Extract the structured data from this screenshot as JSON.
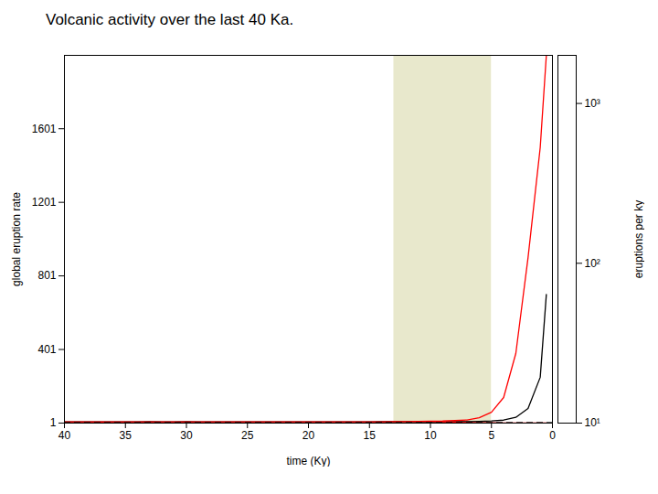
{
  "chart_data": {
    "type": "line",
    "title": "Volcanic activity over the last 40 Ka.",
    "xlabel": "time (Ky)",
    "ylabel": "global eruption rate",
    "y2label": "eruptions per ky",
    "x": [
      40,
      39,
      38,
      37,
      36,
      35,
      34,
      33,
      32,
      31,
      30,
      29,
      28,
      27,
      26,
      25,
      24,
      23,
      22,
      21,
      20,
      19,
      18,
      17,
      16,
      15,
      14,
      13,
      12,
      11,
      10,
      9,
      8,
      7,
      6,
      5,
      4,
      3,
      2,
      1,
      0.5
    ],
    "series": [
      {
        "color": "black",
        "values": [
          7.8,
          7.5,
          7.4,
          7.35,
          7.5,
          7.55,
          7.9,
          8.1,
          7.9,
          7.8,
          8.3,
          8.0,
          7.85,
          7.7,
          7.65,
          7.8,
          7.7,
          7.6,
          7.7,
          7.75,
          7.85,
          7.8,
          7.75,
          7.8,
          7.9,
          8.0,
          8.15,
          8.2,
          8.4,
          8.3,
          8.1,
          7.5,
          8.3,
          9.0,
          10.5,
          12.5,
          17.0,
          32.0,
          80.0,
          250.0,
          700.0
        ]
      },
      {
        "color": "red",
        "values": [
          7.5,
          7.2,
          7.1,
          7.05,
          7.2,
          7.25,
          7.55,
          7.75,
          7.6,
          7.5,
          7.95,
          7.7,
          7.55,
          7.4,
          7.35,
          7.4,
          7.3,
          7.2,
          7.25,
          7.35,
          7.45,
          7.5,
          7.55,
          7.7,
          7.8,
          7.9,
          8.05,
          8.4,
          9.2,
          10.2,
          11.3,
          12.0,
          14.5,
          18.0,
          30.0,
          60.0,
          140.0,
          380.0,
          900.0,
          1500.0,
          2000.0
        ]
      },
      {
        "color": "red",
        "values": [
          1.06,
          1.03,
          1.01,
          1.0,
          1.02,
          1.03,
          1.05,
          1.08,
          1.06,
          1.05,
          1.08,
          1.06,
          1.04,
          1.03,
          1.02,
          1.04,
          1.03,
          1.02,
          1.03,
          1.04,
          1.05,
          1.06,
          1.07,
          1.08,
          1.09,
          1.11,
          1.13,
          1.15,
          1.2,
          1.28,
          1.8,
          3.2,
          4.8,
          4.3,
          2.8,
          1.9,
          1.4,
          1.15,
          1.05,
          1.0,
          1.0
        ]
      }
    ],
    "band": {
      "color": "gray",
      "x": [
        14,
        13,
        12,
        11,
        10,
        9,
        8,
        7,
        6,
        5,
        4,
        3
      ],
      "lo": [
        1.05,
        1.08,
        1.15,
        1.3,
        1.6,
        2.0,
        2.2,
        2.0,
        1.5,
        1.2,
        1.08,
        1.05
      ],
      "hi": [
        1.2,
        1.5,
        2.2,
        4.5,
        8.0,
        11.0,
        12.5,
        10.5,
        6.0,
        3.0,
        1.9,
        1.3
      ]
    },
    "highlight": {
      "x": [
        5,
        13
      ],
      "color": "#d8d9aa"
    },
    "hlines": [
      {
        "y": 1.38,
        "color": "black",
        "line_style": "dashed"
      },
      {
        "y": 0.88,
        "color": "black",
        "line_style": "dashed"
      }
    ],
    "xlim": [
      40,
      0
    ],
    "xticks": [
      40,
      35,
      30,
      25,
      20,
      15,
      10,
      5,
      0
    ],
    "ylim": [
      0.75,
      2000
    ],
    "yticks": [
      1,
      401,
      801,
      1201,
      1601
    ],
    "y2lim": [
      10,
      2000
    ],
    "y2ticks": [
      {
        "value": 10,
        "label": "10¹"
      },
      {
        "value": 100,
        "label": "10²"
      },
      {
        "value": 1000,
        "label": "10³"
      }
    ],
    "log": "y2",
    "grid": false
  }
}
